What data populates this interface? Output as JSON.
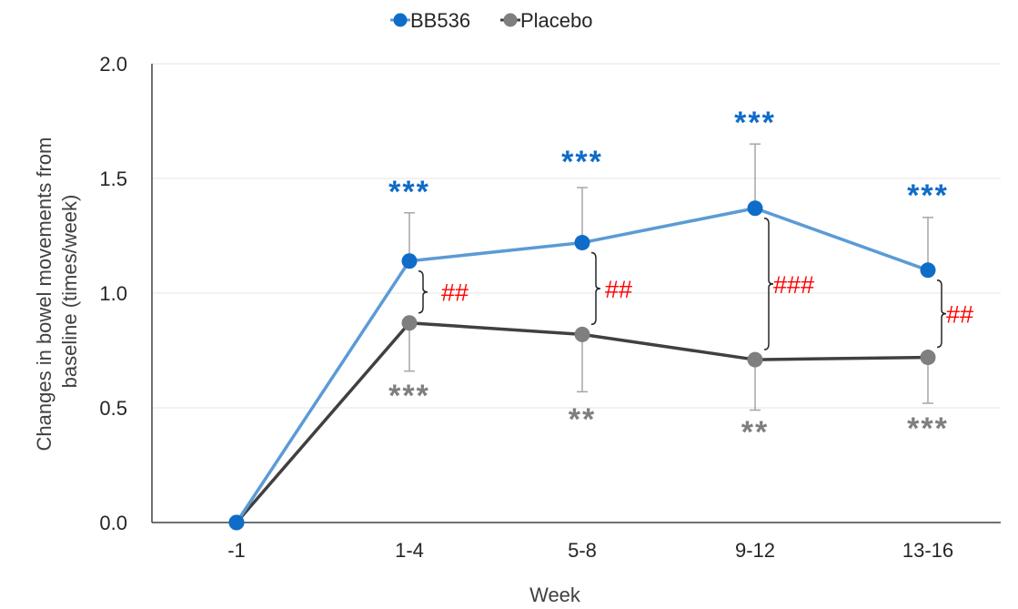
{
  "chart_data": {
    "type": "line",
    "xlabel": "Week",
    "ylabel": "Changes in bowel movements from baseline (times/week)",
    "categories": [
      "-1",
      "1-4",
      "5-8",
      "9-12",
      "13-16"
    ],
    "ylim": [
      0,
      2
    ],
    "yticks": [
      "0.0",
      "0.5",
      "1.0",
      "1.5",
      "2.0"
    ],
    "grid": true,
    "legend_position": "top-center",
    "series": [
      {
        "name": "BB536",
        "color": "#0f6cc8",
        "line_color": "#5b9bd5",
        "values": [
          0,
          1.14,
          1.22,
          1.37,
          1.1
        ],
        "error": [
          0,
          0.21,
          0.24,
          0.28,
          0.23
        ],
        "error_dir": "up",
        "significance": [
          "",
          "***",
          "***",
          "***",
          "***"
        ]
      },
      {
        "name": "Placebo",
        "color": "#7f7f7f",
        "line_color": "#404040",
        "values": [
          0,
          0.87,
          0.82,
          0.71,
          0.72
        ],
        "error": [
          0,
          0.21,
          0.25,
          0.22,
          0.2
        ],
        "error_dir": "down",
        "significance": [
          "",
          "***",
          "**",
          "**",
          "***"
        ]
      }
    ],
    "between_group": {
      "color": "#ff0000",
      "labels": [
        "",
        "##",
        "##",
        "###",
        "##"
      ]
    }
  }
}
